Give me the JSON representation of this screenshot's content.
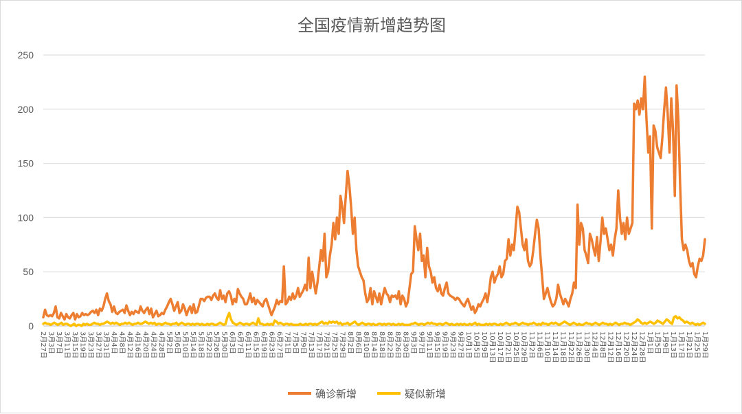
{
  "chart_data": {
    "type": "line",
    "title": "全国疫情新增趋势图",
    "xlabel": "",
    "ylabel": "",
    "ylim": [
      0,
      250
    ],
    "yticks": [
      0,
      50,
      100,
      150,
      200,
      250
    ],
    "grid": true,
    "legend": "bottom",
    "x_labels": [
      "2月27日",
      "3月3日",
      "3月7日",
      "3月11日",
      "3月15日",
      "3月19日",
      "3月23日",
      "3月27日",
      "3月31日",
      "4月4日",
      "4月8日",
      "4月12日",
      "4月16日",
      "4月20日",
      "4月24日",
      "4月28日",
      "5月2日",
      "5月6日",
      "5月10日",
      "5月14日",
      "5月18日",
      "5月22日",
      "5月26日",
      "5月30日",
      "6月3日",
      "6月7日",
      "6月11日",
      "6月15日",
      "6月19日",
      "6月23日",
      "6月27日",
      "7月1日",
      "7月5日",
      "7月9日",
      "7月13日",
      "7月17日",
      "7月21日",
      "7月25日",
      "7月29日",
      "8月2日",
      "8月6日",
      "8月10日",
      "8月14日",
      "8月18日",
      "8月22日",
      "8月26日",
      "8月30日",
      "9月3日",
      "9月7日",
      "9月11日",
      "9月15日",
      "9月19日",
      "9月23日",
      "9月27日",
      "10月1日",
      "10月5日",
      "10月9日",
      "10月13日",
      "10月17日",
      "10月21日",
      "10月25日",
      "10月29日",
      "11月2日",
      "11月6日",
      "11月10日",
      "11月14日",
      "11月18日",
      "11月22日",
      "11月26日",
      "11月30日",
      "12月4日",
      "12月8日",
      "12月12日",
      "12月16日",
      "12月20日",
      "12月24日",
      "12月28日",
      "1月1日",
      "1月5日",
      "1月9日",
      "1月13日",
      "1月17日",
      "1月21日",
      "1月25日",
      "1月29日"
    ],
    "series": [
      {
        "name": "确诊新增",
        "color": "#ED7D31",
        "values": [
          8,
          15,
          10,
          9,
          10,
          9,
          12,
          18,
          8,
          7,
          12,
          9,
          6,
          11,
          8,
          7,
          10,
          12,
          6,
          11,
          8,
          9,
          12,
          10,
          11,
          10,
          11,
          13,
          14,
          12,
          15,
          10,
          16,
          14,
          18,
          25,
          30,
          23,
          20,
          13,
          18,
          12,
          11,
          13,
          14,
          15,
          12,
          19,
          14,
          10,
          13,
          11,
          14,
          13,
          12,
          18,
          14,
          12,
          15,
          17,
          11,
          16,
          8,
          11,
          14,
          9,
          10,
          12,
          11,
          15,
          18,
          22,
          25,
          20,
          14,
          18,
          22,
          12,
          14,
          20,
          16,
          10,
          15,
          18,
          12,
          20,
          12,
          13,
          19,
          25,
          25,
          23,
          26,
          27,
          27,
          24,
          28,
          30,
          26,
          24,
          33,
          25,
          28,
          22,
          30,
          32,
          28,
          20,
          25,
          22,
          34,
          30,
          27,
          25,
          20,
          20,
          24,
          30,
          22,
          26,
          20,
          24,
          22,
          20,
          18,
          23,
          25,
          20,
          15,
          10,
          14,
          18,
          24,
          20,
          23,
          22,
          55,
          20,
          22,
          27,
          24,
          30,
          25,
          28,
          35,
          27,
          30,
          33,
          38,
          33,
          63,
          35,
          50,
          40,
          30,
          40,
          55,
          70,
          60,
          85,
          45,
          50,
          65,
          75,
          95,
          80,
          100,
          85,
          120,
          110,
          95,
          120,
          143,
          130,
          110,
          85,
          100,
          70,
          55,
          50,
          45,
          42,
          30,
          22,
          25,
          35,
          20,
          32,
          27,
          22,
          30,
          20,
          28,
          35,
          30,
          28,
          22,
          28,
          27,
          28,
          25,
          32,
          20,
          28,
          25,
          18,
          22,
          35,
          48,
          50,
          92,
          80,
          70,
          85,
          60,
          65,
          45,
          72,
          55,
          50,
          40,
          45,
          35,
          32,
          38,
          30,
          28,
          35,
          40,
          30,
          28,
          27,
          26,
          24,
          26,
          25,
          22,
          20,
          18,
          22,
          25,
          20,
          15,
          18,
          12,
          15,
          20,
          18,
          22,
          25,
          30,
          22,
          32,
          45,
          50,
          40,
          45,
          48,
          55,
          45,
          48,
          60,
          62,
          80,
          65,
          75,
          70,
          90,
          110,
          105,
          90,
          75,
          70,
          80,
          60,
          55,
          58,
          70,
          85,
          98,
          90,
          65,
          45,
          25,
          30,
          35,
          28,
          22,
          18,
          20,
          25,
          38,
          30,
          25,
          20,
          25,
          22,
          18,
          25,
          30,
          40,
          35,
          112,
          75,
          95,
          90,
          70,
          65,
          58,
          85,
          80,
          72,
          65,
          82,
          60,
          78,
          100,
          85,
          90,
          80,
          70,
          75,
          65,
          80,
          90,
          125,
          100,
          85,
          95,
          80,
          100,
          85,
          90,
          95,
          205,
          200,
          208,
          195,
          210,
          200,
          230,
          190,
          160,
          175,
          90,
          185,
          180,
          165,
          160,
          155,
          175,
          200,
          220,
          195,
          160,
          210,
          180,
          120,
          222,
          190,
          130,
          80,
          70,
          75,
          70,
          60,
          55,
          58,
          48,
          45,
          55,
          62,
          60,
          65,
          80
        ]
      },
      {
        "name": "疑似新增",
        "color": "#FFC000",
        "values": [
          2,
          3,
          2,
          2,
          1,
          2,
          3,
          2,
          1,
          2,
          3,
          1,
          2,
          2,
          1,
          0,
          1,
          2,
          0,
          1,
          1,
          0,
          2,
          1,
          2,
          1,
          1,
          2,
          3,
          2,
          2,
          1,
          2,
          2,
          3,
          4,
          3,
          2,
          3,
          2,
          3,
          2,
          1,
          2,
          2,
          3,
          2,
          3,
          2,
          1,
          2,
          2,
          3,
          2,
          2,
          3,
          4,
          3,
          2,
          3,
          2,
          3,
          1,
          2,
          2,
          1,
          2,
          3,
          2,
          2,
          1,
          2,
          2,
          3,
          1,
          2,
          3,
          2,
          1,
          2,
          2,
          1,
          2,
          1,
          2,
          2,
          1,
          2,
          1,
          1,
          2,
          1,
          2,
          2,
          1,
          1,
          2,
          3,
          2,
          1,
          2,
          8,
          12,
          6,
          3,
          2,
          1,
          2,
          3,
          2,
          1,
          2,
          2,
          1,
          2,
          3,
          2,
          1,
          7,
          2,
          2,
          1,
          1,
          2,
          1,
          2,
          1,
          5,
          4,
          2,
          3,
          2,
          1,
          2,
          2,
          1,
          2,
          1,
          1,
          1,
          1,
          2,
          1,
          1,
          2,
          1,
          2,
          2,
          1,
          2,
          1,
          2,
          3,
          4,
          2,
          3,
          2,
          4,
          3,
          4,
          3,
          4,
          2,
          3,
          1,
          2,
          2,
          3,
          1,
          2,
          3,
          4,
          2,
          1,
          2,
          3,
          2,
          1,
          2,
          2,
          1,
          2,
          1,
          1,
          2,
          2,
          1,
          2,
          1,
          2,
          2,
          1,
          2,
          1,
          1,
          2,
          1,
          2,
          1,
          1,
          1,
          1,
          2,
          2,
          3,
          2,
          1,
          2,
          2,
          1,
          2,
          3,
          2,
          3,
          2,
          2,
          1,
          2,
          2,
          1,
          2,
          3,
          2,
          1,
          2,
          1,
          1,
          2,
          1,
          2,
          1,
          2,
          1,
          1,
          2,
          1,
          2,
          3,
          1,
          2,
          1,
          1,
          1,
          2,
          1,
          2,
          1,
          2,
          2,
          1,
          1,
          2,
          1,
          2,
          3,
          2,
          1,
          2,
          2,
          3,
          2,
          1,
          2,
          3,
          2,
          2,
          1,
          2,
          2,
          3,
          2,
          1,
          2,
          1,
          3,
          2,
          2,
          1,
          2,
          3,
          2,
          3,
          2,
          1,
          2,
          3,
          4,
          3,
          2,
          1,
          2,
          3,
          2,
          1,
          2,
          1,
          1,
          2,
          3,
          2,
          2,
          1,
          2,
          3,
          2,
          1,
          2,
          3,
          2,
          2,
          1,
          2,
          1,
          2,
          3,
          2,
          1,
          2,
          2,
          3,
          2,
          2,
          1,
          2,
          3,
          4,
          6,
          5,
          3,
          2,
          3,
          2,
          3,
          4,
          3,
          2,
          3,
          5,
          4,
          3,
          2,
          4,
          6,
          5,
          3,
          2,
          8,
          9,
          7,
          8,
          6,
          5,
          3,
          4,
          3,
          2,
          3,
          2,
          1,
          2,
          1,
          2,
          3,
          2
        ]
      }
    ]
  }
}
